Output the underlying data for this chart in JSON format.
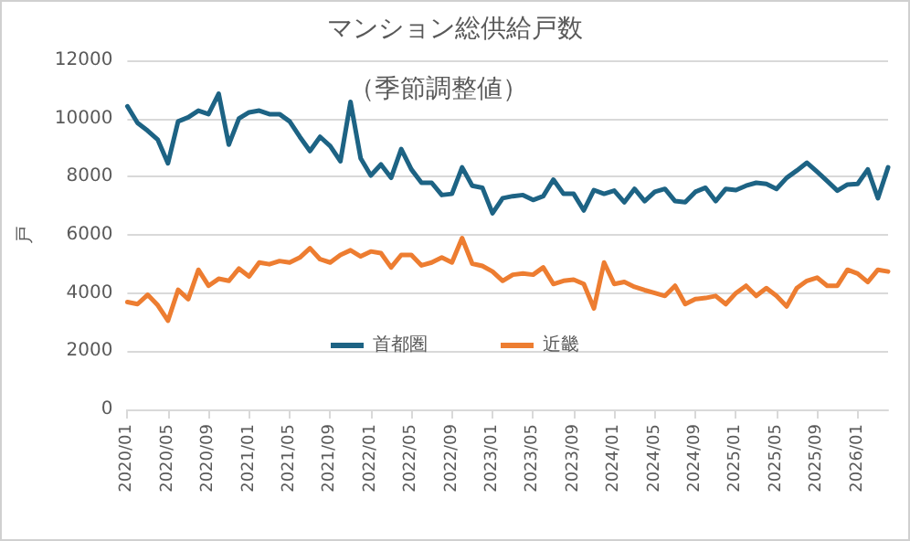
{
  "chart_data": {
    "type": "line",
    "title": "マンション総供給戸数",
    "subtitle": "（季節調整値）",
    "ylabel": "戸",
    "categories": [
      "2020/01",
      null,
      null,
      null,
      "2020/05",
      null,
      null,
      null,
      "2020/09",
      null,
      null,
      null,
      "2021/01",
      null,
      null,
      null,
      "2021/05",
      null,
      null,
      null,
      "2021/09",
      null,
      null,
      null,
      "2022/01",
      null,
      null,
      null,
      "2022/05",
      null,
      null,
      null,
      "2022/09",
      null,
      null,
      null,
      "2023/01",
      null,
      null,
      null,
      "2023/05",
      null,
      null,
      null,
      "2023/09",
      null,
      null,
      null,
      "2024/01",
      null,
      null,
      null,
      "2024/05",
      null,
      null,
      null,
      "2024/09",
      null,
      null,
      null,
      "2025/01",
      null,
      null,
      null,
      "2025/05",
      null,
      null,
      null,
      "2025/09",
      null,
      null,
      null,
      "2026/01",
      null,
      null,
      null
    ],
    "series": [
      {
        "name": "首都圏",
        "color": "#1d6384",
        "values": [
          10420,
          9850,
          9580,
          9270,
          8460,
          9900,
          10040,
          10270,
          10150,
          10850,
          9100,
          10000,
          10210,
          10270,
          10150,
          10150,
          9900,
          9370,
          8880,
          9370,
          9050,
          8530,
          10570,
          8630,
          8040,
          8420,
          7960,
          8950,
          8250,
          7790,
          7790,
          7370,
          7410,
          8320,
          7690,
          7620,
          6740,
          7260,
          7330,
          7370,
          7200,
          7330,
          7900,
          7410,
          7410,
          6840,
          7540,
          7410,
          7520,
          7120,
          7580,
          7160,
          7480,
          7580,
          7160,
          7120,
          7480,
          7620,
          7160,
          7580,
          7540,
          7690,
          7790,
          7750,
          7580,
          7960,
          8210,
          8480,
          8170,
          7850,
          7520,
          7730,
          7750,
          8250,
          7260,
          8320
        ]
      },
      {
        "name": "近畿",
        "color": "#ed7d31",
        "values": [
          3690,
          3620,
          3940,
          3580,
          3050,
          4110,
          3790,
          4800,
          4250,
          4490,
          4420,
          4840,
          4570,
          5050,
          4990,
          5100,
          5050,
          5220,
          5540,
          5160,
          5050,
          5310,
          5470,
          5260,
          5430,
          5370,
          4880,
          5310,
          5310,
          4950,
          5050,
          5220,
          5050,
          5890,
          5010,
          4930,
          4740,
          4420,
          4630,
          4670,
          4630,
          4880,
          4310,
          4420,
          4460,
          4310,
          3470,
          5050,
          4310,
          4380,
          4210,
          4100,
          4000,
          3900,
          4250,
          3620,
          3790,
          3830,
          3900,
          3620,
          4000,
          4250,
          3900,
          4170,
          3900,
          3540,
          4170,
          4420,
          4530,
          4250,
          4250,
          4800,
          4670,
          4380,
          4800,
          4740
        ]
      }
    ],
    "ylim": [
      0,
      12000
    ],
    "yticks": [
      0,
      2000,
      4000,
      6000,
      8000,
      10000,
      12000
    ],
    "grid": "y",
    "legend": "bottom",
    "marker": "none",
    "line_style": "solid"
  }
}
